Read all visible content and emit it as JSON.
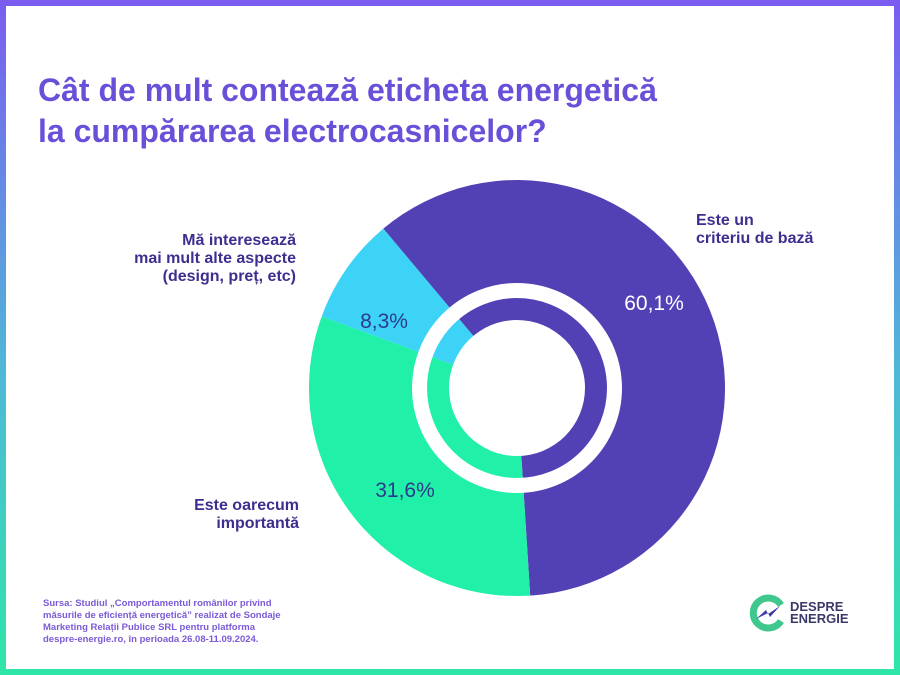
{
  "chart_data": {
    "type": "pie",
    "title": "Cât de mult contează eticheta energetică la cumpărarea electrocasnicelor?",
    "title_lines": [
      "Cât de mult contează eticheta energetică",
      "la cumpărarea electrocasnicelor?"
    ],
    "slices": [
      {
        "label_lines": [
          "Este un",
          "criteriu de bază"
        ],
        "value": 60.1,
        "display": "60,1%",
        "color": "#5240b5",
        "text_color": "#ffffff"
      },
      {
        "label_lines": [
          "Este oarecum",
          "importantă"
        ],
        "value": 31.6,
        "display": "31,6%",
        "color": "#21f0a8",
        "text_color": "#2d3a8c"
      },
      {
        "label_lines": [
          "Mă interesează",
          "mai mult alte aspecte",
          "(design, preț, etc)"
        ],
        "value": 8.3,
        "display": "8,3%",
        "color": "#3dd3f7",
        "text_color": "#2d3a8c"
      }
    ]
  },
  "source_lines": [
    "Sursa: Studiul „Comportamentul românilor privind",
    "măsurile de eficiență energetică” realizat de Sondaje",
    "Marketing Relații Publice SRL pentru platforma",
    "despre-energie.ro, în perioada 26.08-11.09.2024."
  ],
  "logo": {
    "line1": "DESPRE",
    "line2": "ENERGIE"
  }
}
